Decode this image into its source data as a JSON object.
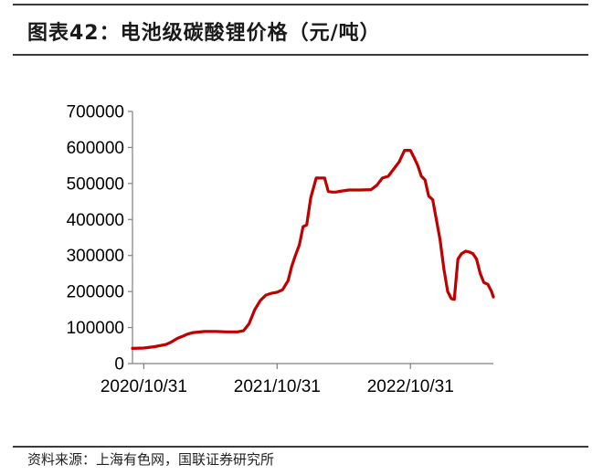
{
  "figure_title": "图表42：电池级碳酸锂价格（元/吨）",
  "source": "资料来源：上海有色网，国联证券研究所",
  "colors": {
    "line": "#c00000",
    "axis": "#7f7f7f",
    "text": "#000000"
  },
  "chart_data": {
    "type": "line",
    "title": "",
    "xlabel": "",
    "ylabel": "",
    "ylim": [
      0,
      700000
    ],
    "yticks": [
      0,
      100000,
      200000,
      300000,
      400000,
      500000,
      600000,
      700000
    ],
    "ytick_labels": [
      "0",
      "100000",
      "200000",
      "300000",
      "400000",
      "500000",
      "600000",
      "700000"
    ],
    "xlim": [
      "2020-09-30",
      "2023-06-15"
    ],
    "xticks": [
      "2020-10-31",
      "2021-10-31",
      "2022-10-31"
    ],
    "xtick_labels": [
      "2020/10/31",
      "2021/10/31",
      "2022/10/31"
    ],
    "grid": false,
    "legend": "none",
    "series": [
      {
        "name": "",
        "x": [
          "2020-09-30",
          "2020-10-31",
          "2020-11-30",
          "2020-12-31",
          "2021-01-15",
          "2021-01-31",
          "2021-02-15",
          "2021-02-28",
          "2021-03-15",
          "2021-04-15",
          "2021-05-15",
          "2021-06-15",
          "2021-07-15",
          "2021-07-31",
          "2021-08-15",
          "2021-08-31",
          "2021-09-15",
          "2021-09-30",
          "2021-10-15",
          "2021-10-31",
          "2021-11-15",
          "2021-11-30",
          "2021-12-10",
          "2021-12-20",
          "2021-12-31",
          "2022-01-10",
          "2022-01-20",
          "2022-01-31",
          "2022-02-15",
          "2022-02-28",
          "2022-03-10",
          "2022-03-20",
          "2022-03-31",
          "2022-04-10",
          "2022-04-20",
          "2022-05-15",
          "2022-06-15",
          "2022-07-15",
          "2022-07-31",
          "2022-08-15",
          "2022-08-31",
          "2022-09-15",
          "2022-09-30",
          "2022-10-15",
          "2022-10-31",
          "2022-11-10",
          "2022-11-20",
          "2022-11-30",
          "2022-12-10",
          "2022-12-20",
          "2022-12-31",
          "2023-01-10",
          "2023-01-20",
          "2023-01-31",
          "2023-02-10",
          "2023-02-20",
          "2023-02-28",
          "2023-03-10",
          "2023-03-20",
          "2023-03-31",
          "2023-04-10",
          "2023-04-20",
          "2023-04-30",
          "2023-05-10",
          "2023-05-20",
          "2023-05-31",
          "2023-06-10",
          "2023-06-15"
        ],
        "y": [
          42000,
          43000,
          47000,
          53000,
          60000,
          70000,
          76000,
          82000,
          86000,
          89000,
          89000,
          88000,
          88000,
          91000,
          110000,
          150000,
          175000,
          190000,
          195000,
          198000,
          205000,
          230000,
          270000,
          300000,
          330000,
          380000,
          385000,
          460000,
          515000,
          515000,
          515000,
          478000,
          476000,
          476000,
          478000,
          482000,
          482000,
          483000,
          495000,
          515000,
          520000,
          540000,
          560000,
          592000,
          592000,
          572000,
          550000,
          520000,
          510000,
          465000,
          455000,
          400000,
          345000,
          260000,
          200000,
          180000,
          178000,
          290000,
          305000,
          312000,
          310000,
          305000,
          290000,
          250000,
          225000,
          220000,
          200000,
          185000
        ]
      }
    ]
  }
}
